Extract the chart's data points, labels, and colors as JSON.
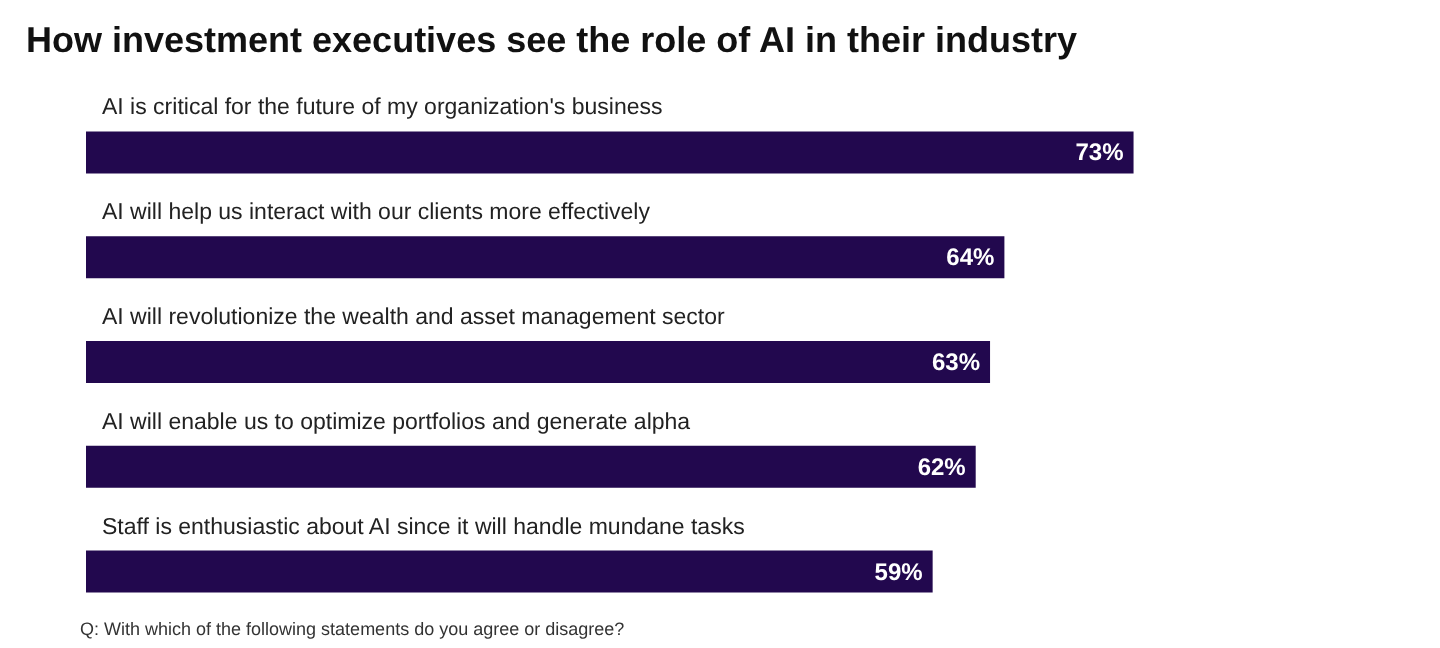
{
  "chart_data": {
    "type": "bar",
    "orientation": "horizontal",
    "title": "How investment executives see the role of AI in their industry",
    "categories": [
      "AI is critical for the future of my organization's business",
      "AI will help us interact with our clients more effectively",
      "AI will revolutionize the wealth and asset management sector",
      "AI will enable us to optimize portfolios and generate alpha",
      "Staff is enthusiastic about AI since it will handle mundane tasks"
    ],
    "values": [
      73,
      64,
      63,
      62,
      59
    ],
    "value_labels": [
      "73%",
      "64%",
      "63%",
      "62%",
      "59%"
    ],
    "color": "#22084e",
    "annotations": [
      "Q: With which of the following statements do you agree or disagree?"
    ]
  }
}
